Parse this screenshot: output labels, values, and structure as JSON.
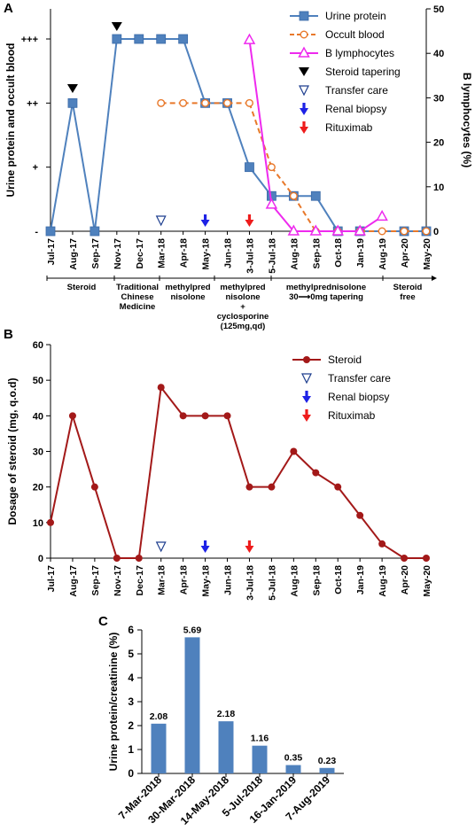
{
  "chart_data": [
    {
      "panel_label": "A",
      "type": "line",
      "categories": [
        "Jul-17",
        "Aug-17",
        "Sep-17",
        "Nov-17",
        "Dec-17",
        "Mar-18",
        "Apr-18",
        "May-18",
        "Jun-18",
        "3-Jul-18",
        "5-Jul-18",
        "Aug-18",
        "Sep-18",
        "Oct-18",
        "Jan-19",
        "Aug-19",
        "Apr-20",
        "May-20"
      ],
      "ylabel": "Urine protein and occult blood",
      "y_ticks": [
        "-",
        "+",
        "++",
        "+++"
      ],
      "y2label": "B lymphocytes (%)",
      "y2_ticks": [
        "0",
        "10",
        "20",
        "30",
        "40",
        "50"
      ],
      "y2lim": [
        0,
        50
      ],
      "series": [
        {
          "name": "Urine protein",
          "color": "#4F81BD",
          "marker": "square",
          "dash": "solid",
          "values": [
            0,
            2.0,
            0,
            3,
            3,
            3,
            3,
            2.0,
            2.0,
            1.0,
            0.55,
            0.55,
            0.55,
            0,
            0,
            null,
            0,
            0
          ]
        },
        {
          "name": "Occult blood",
          "color": "#E8782A",
          "marker": "circle-open",
          "dash": "dashed",
          "values": [
            null,
            null,
            null,
            null,
            null,
            2.0,
            2.0,
            2.0,
            2.0,
            2.0,
            1.0,
            0.55,
            0,
            0,
            0,
            0,
            0,
            0
          ]
        },
        {
          "name": "B lymphocytes",
          "color": "#EE2AEE",
          "marker": "triangle-open",
          "dash": "solid",
          "values": [
            null,
            null,
            null,
            null,
            null,
            null,
            null,
            null,
            null,
            43,
            6,
            0,
            0,
            0,
            0,
            3.3,
            null,
            null
          ]
        }
      ],
      "events": [
        {
          "name": "Steroid tapering",
          "color": "#000000",
          "marker": "filled-down-triangle",
          "at": [
            "Aug-17",
            "Nov-17"
          ]
        },
        {
          "name": "Transfer care",
          "color": "#1F3F8F",
          "marker": "open-down-triangle",
          "at": [
            "Mar-18"
          ]
        },
        {
          "name": "Renal biopsy",
          "color": "#1E22E6",
          "marker": "arrow-down",
          "at": [
            "May-18"
          ]
        },
        {
          "name": "Rituximab",
          "color": "#EE1C1C",
          "marker": "arrow-down",
          "at": [
            "3-Jul-18"
          ]
        }
      ],
      "treatment_periods": [
        {
          "label": "Steroid",
          "from": "Jul-17",
          "to": "Nov-17"
        },
        {
          "label": "Traditional\nChinese\nMedicine",
          "from": "Dec-17",
          "to": "Mar-18"
        },
        {
          "label": "methylpred\nnisolone",
          "from": "Mar-18",
          "to": "May-18"
        },
        {
          "label": "methylpred\nnisolone\n+\ncyclosporine\n(125mg,qd)",
          "from": "Jun-18",
          "to": "3-Jul-18"
        },
        {
          "label": "methylprednisolone\n30⟶0mg tapering",
          "from": "5-Jul-18",
          "to": "Aug-19"
        },
        {
          "label": "Steroid\nfree",
          "from": "Apr-20",
          "to": "May-20"
        }
      ]
    },
    {
      "panel_label": "B",
      "type": "line",
      "categories": [
        "Jul-17",
        "Aug-17",
        "Sep-17",
        "Nov-17",
        "Dec-17",
        "Mar-18",
        "Apr-18",
        "May-18",
        "Jun-18",
        "3-Jul-18",
        "5-Jul-18",
        "Aug-18",
        "Sep-18",
        "Oct-18",
        "Jan-19",
        "Aug-19",
        "Apr-20",
        "May-20"
      ],
      "ylabel": "Dosage of steroid (mg, q.o.d)",
      "ylim": [
        0,
        60
      ],
      "y_ticks": [
        0,
        10,
        20,
        30,
        40,
        50,
        60
      ],
      "series": [
        {
          "name": "Steroid",
          "color": "#A31919",
          "marker": "circle",
          "dash": "solid",
          "values": [
            10,
            40,
            20,
            0,
            0,
            48,
            40,
            40,
            40,
            20,
            20,
            30,
            24,
            20,
            12,
            4,
            0,
            0
          ]
        }
      ],
      "events": [
        {
          "name": "Transfer care",
          "color": "#1F3F8F",
          "marker": "open-down-triangle",
          "at": [
            "Mar-18"
          ]
        },
        {
          "name": "Renal biopsy",
          "color": "#1E22E6",
          "marker": "arrow-down",
          "at": [
            "May-18"
          ]
        },
        {
          "name": "Rituximab",
          "color": "#EE1C1C",
          "marker": "arrow-down",
          "at": [
            "3-Jul-18"
          ]
        }
      ]
    },
    {
      "panel_label": "C",
      "type": "bar",
      "categories": [
        "7-Mar-2018",
        "30-Mar-2018",
        "14-May-2018",
        "5-Jul-2018",
        "16-Jan-2019",
        "7-Aug-2019"
      ],
      "values": [
        2.08,
        5.69,
        2.18,
        1.16,
        0.35,
        0.23
      ],
      "data_labels": [
        "2.08",
        "5.69",
        "2.18",
        "1.16",
        "0.35",
        "0.23"
      ],
      "ylabel": "Urine protein/creatinine (%)",
      "ylim": [
        0,
        6
      ],
      "y_ticks": [
        0,
        1,
        2,
        3,
        4,
        5,
        6
      ],
      "bar_color": "#4F81BD"
    }
  ]
}
